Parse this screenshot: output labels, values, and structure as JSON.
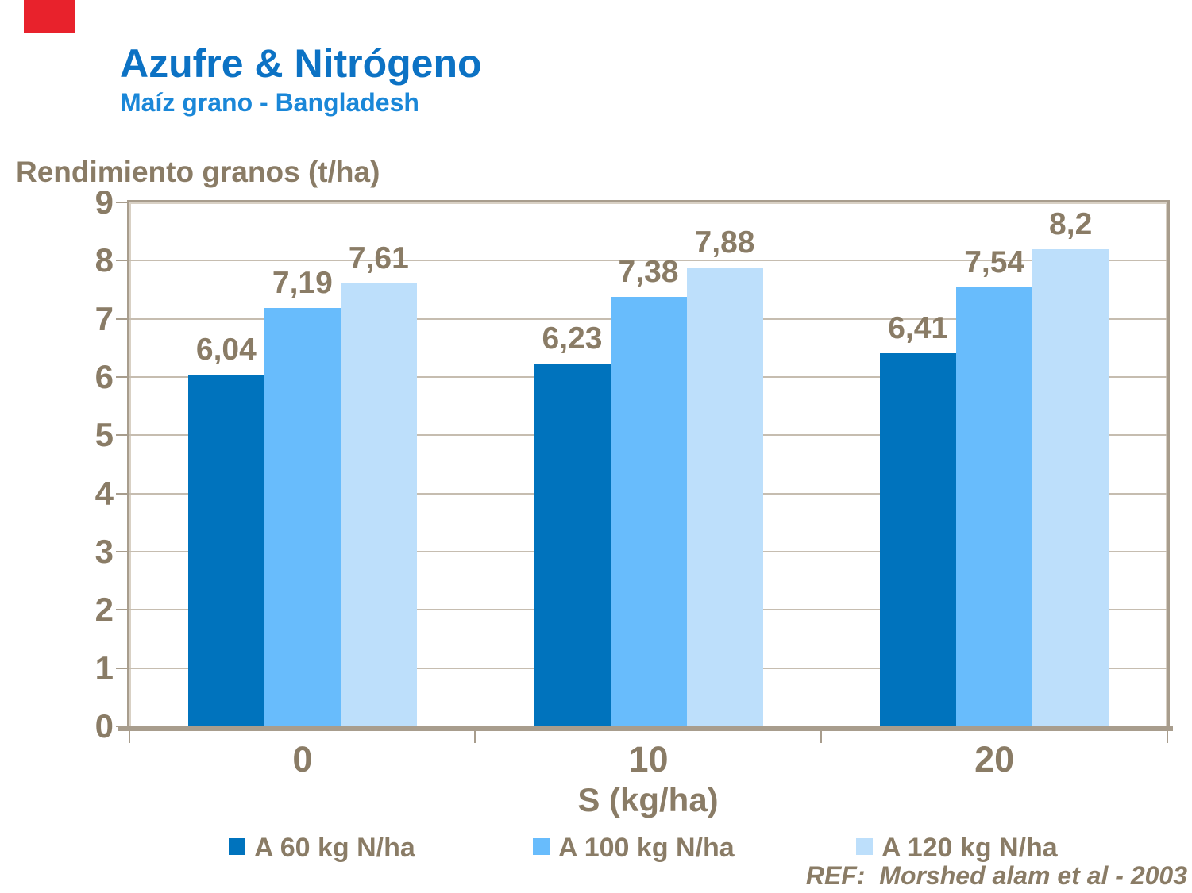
{
  "slide": {
    "title": "Azufre & Nitrógeno",
    "subtitle": "Maíz grano - Bangladesh",
    "ref": "REF:  Morshed alam et al - 2003"
  },
  "colors": {
    "title_blue": "#0C72C4",
    "subtitle_blue": "#1A87D8",
    "text_brown": "#8A7C66",
    "axis_line": "#A89D8D",
    "gridline": "#C6BDB0",
    "series1": "#0073BD",
    "series2": "#68BCFC",
    "series3": "#BDDFFB",
    "accent_red": "#E8222C"
  },
  "chart_data": {
    "type": "bar",
    "title": "Azufre & Nitrógeno",
    "subtitle": "Maíz grano - Bangladesh",
    "ylabel": "Rendimiento granos (t/ha)",
    "xlabel": "S (kg/ha)",
    "categories": [
      "0",
      "10",
      "20"
    ],
    "series": [
      {
        "name": "A 60 kg N/ha",
        "color": "#0073BD",
        "values": [
          6.04,
          6.23,
          6.41
        ],
        "labels": [
          "6,04",
          "6,23",
          "6,41"
        ]
      },
      {
        "name": "A 100 kg N/ha",
        "color": "#68BCFC",
        "values": [
          7.19,
          7.38,
          7.54
        ],
        "labels": [
          "7,19",
          "7,38",
          "7,54"
        ]
      },
      {
        "name": "A 120 kg N/ha",
        "color": "#BDDFFB",
        "values": [
          7.61,
          7.88,
          8.2
        ],
        "labels": [
          "7,61",
          "7,88",
          "8,2"
        ]
      }
    ],
    "ylim": [
      0,
      9
    ],
    "yticks": [
      0,
      1,
      2,
      3,
      4,
      5,
      6,
      7,
      8,
      9
    ],
    "grid": true,
    "legend_position": "bottom"
  }
}
